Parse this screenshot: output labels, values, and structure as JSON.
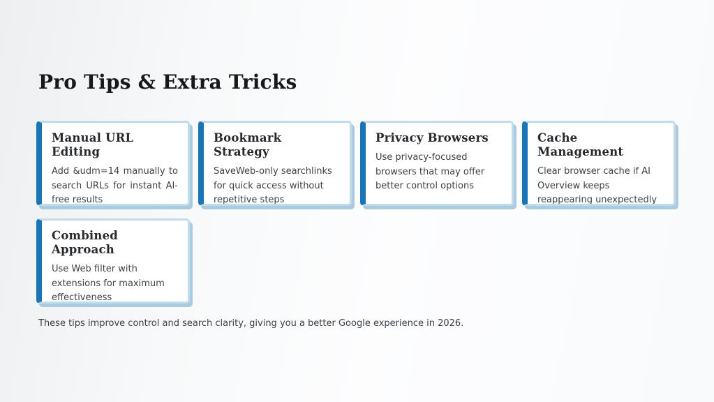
{
  "page": {
    "title": "Pro Tips & Extra Tricks",
    "footer": "These tips improve control and search clarity, giving you a better Google experience in 2026."
  },
  "cards": [
    {
      "title": "Manual URL Editing",
      "body": "Add &udm=14 manually to search URLs for instant AI-free results"
    },
    {
      "title": "Bookmark Strategy",
      "body": "SaveWeb-only searchlinks for quick access without repetitive steps"
    },
    {
      "title": "Privacy Browsers",
      "body": "Use privacy-focused browsers that may offer better control options"
    },
    {
      "title": "Cache Management",
      "body": "Clear browser cache if AI Overview keeps reappearing unexpectedly"
    },
    {
      "title": "Combined Approach",
      "body": "Use Web filter with extensions for maximum effectiveness"
    }
  ],
  "colors": {
    "accent_bar": "#1577b9",
    "card_border": "#c2dbea",
    "card_shadow": "#aacbde",
    "background_start": "#edeff0",
    "background_end": "#f8fafc",
    "title_text": "#16181b",
    "heading_text": "#26292d",
    "body_text": "#3d4247",
    "footer_text": "#3a4045"
  }
}
